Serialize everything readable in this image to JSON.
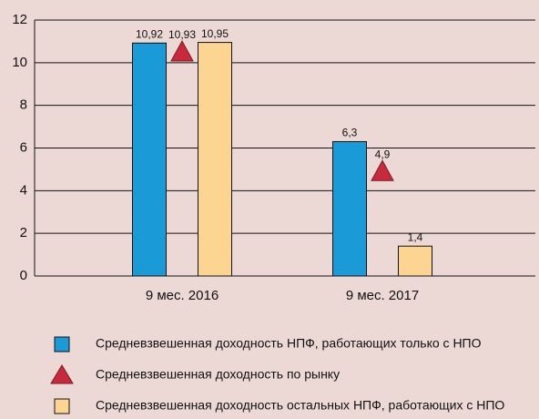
{
  "chart_data": {
    "type": "bar",
    "categories": [
      "9 мес. 2016",
      "9 мес. 2017"
    ],
    "series": [
      {
        "name": "Средневзвешенная доходность НПФ, работающих только с НПО",
        "color": "#1a9ad6",
        "mark": "bar",
        "values": [
          10.92,
          6.3
        ],
        "value_labels": [
          "10,92",
          "6,3"
        ]
      },
      {
        "name": "Средневзвешенная доходность по рынку",
        "color": "#c8293b",
        "mark": "triangle",
        "values": [
          10.93,
          4.9
        ],
        "value_labels": [
          "10,93",
          "4,9"
        ]
      },
      {
        "name": "Средневзвешенная доходность остальных НПФ, работающих с НПО",
        "color": "#fdd592",
        "mark": "bar",
        "values": [
          10.95,
          1.4
        ],
        "value_labels": [
          "10,95",
          "1,4"
        ]
      }
    ],
    "ylim": [
      0,
      12
    ],
    "yticks": [
      0,
      2,
      4,
      6,
      8,
      10,
      12
    ],
    "grid": true
  }
}
